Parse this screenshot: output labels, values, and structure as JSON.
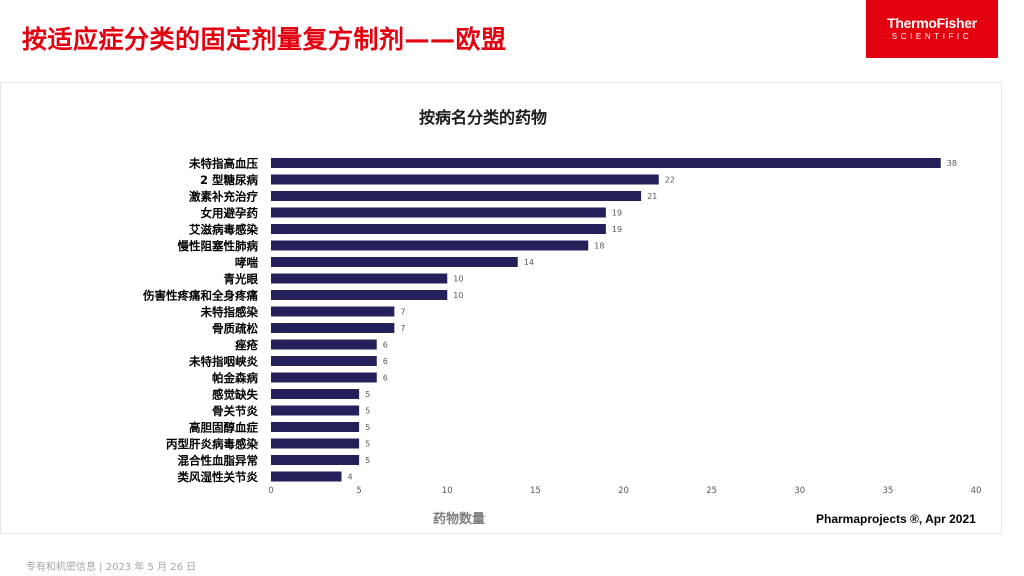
{
  "slide": {
    "title": "按适应症分类的固定剂量复方制剂——欧盟",
    "logo_line1": "ThermoFisher",
    "logo_line2": "SCIENTIFIC",
    "source": "Pharmaprojects ®, Apr 2021",
    "footer": "专有和机密信息 | 2023 年 5 月 26 日",
    "brand_color": "#e3000f"
  },
  "chart_data": {
    "type": "bar",
    "orientation": "horizontal",
    "title": "按病名分类的药物",
    "xlabel": "药物数量",
    "ylabel": "",
    "xlim": [
      0,
      40
    ],
    "xticks": [
      0,
      5,
      10,
      15,
      20,
      25,
      30,
      35,
      40
    ],
    "grid": false,
    "bar_color": "#24215a",
    "categories": [
      "未特指高血压",
      "2 型糖尿病",
      "激素补充治疗",
      "女用避孕药",
      "艾滋病毒感染",
      "慢性阻塞性肺病",
      "哮喘",
      "青光眼",
      "伤害性疼痛和全身疼痛",
      "未特指感染",
      "骨质疏松",
      "痤疮",
      "未特指咽峡炎",
      "帕金森病",
      "感觉缺失",
      "骨关节炎",
      "高胆固醇血症",
      "丙型肝炎病毒感染",
      "混合性血脂异常",
      "类风湿性关节炎"
    ],
    "values": [
      38,
      22,
      21,
      19,
      19,
      18,
      14,
      10,
      10,
      7,
      7,
      6,
      6,
      6,
      5,
      5,
      5,
      5,
      5,
      4
    ]
  }
}
